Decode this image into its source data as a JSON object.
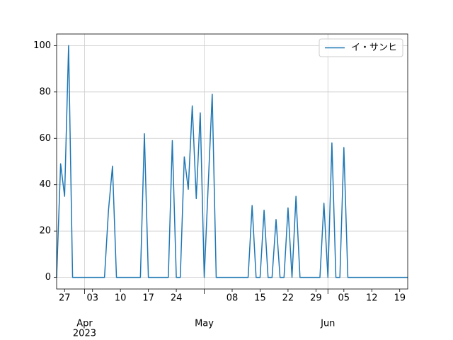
{
  "chart_data": {
    "type": "line",
    "x": [
      "2023-03-25",
      "2023-03-26",
      "2023-03-27",
      "2023-03-28",
      "2023-03-29",
      "2023-03-30",
      "2023-03-31",
      "2023-04-01",
      "2023-04-02",
      "2023-04-03",
      "2023-04-04",
      "2023-04-05",
      "2023-04-06",
      "2023-04-07",
      "2023-04-08",
      "2023-04-09",
      "2023-04-10",
      "2023-04-11",
      "2023-04-12",
      "2023-04-13",
      "2023-04-14",
      "2023-04-15",
      "2023-04-16",
      "2023-04-17",
      "2023-04-18",
      "2023-04-19",
      "2023-04-20",
      "2023-04-21",
      "2023-04-22",
      "2023-04-23",
      "2023-04-24",
      "2023-04-25",
      "2023-04-26",
      "2023-04-27",
      "2023-04-28",
      "2023-04-29",
      "2023-04-30",
      "2023-05-01",
      "2023-05-02",
      "2023-05-03",
      "2023-05-04",
      "2023-05-05",
      "2023-05-06",
      "2023-05-07",
      "2023-05-08",
      "2023-05-09",
      "2023-05-10",
      "2023-05-11",
      "2023-05-12",
      "2023-05-13",
      "2023-05-14",
      "2023-05-15",
      "2023-05-16",
      "2023-05-17",
      "2023-05-18",
      "2023-05-19",
      "2023-05-20",
      "2023-05-21",
      "2023-05-22",
      "2023-05-23",
      "2023-05-24",
      "2023-05-25",
      "2023-05-26",
      "2023-05-27",
      "2023-05-28",
      "2023-05-29",
      "2023-05-30",
      "2023-05-31",
      "2023-06-01",
      "2023-06-02",
      "2023-06-03",
      "2023-06-04",
      "2023-06-05",
      "2023-06-06",
      "2023-06-07",
      "2023-06-08",
      "2023-06-09",
      "2023-06-10",
      "2023-06-11",
      "2023-06-12",
      "2023-06-13",
      "2023-06-14",
      "2023-06-15",
      "2023-06-16",
      "2023-06-17",
      "2023-06-18",
      "2023-06-19",
      "2023-06-20",
      "2023-06-21"
    ],
    "series": [
      {
        "name": "イ・サンヒ",
        "color": "#1f77b4",
        "values": [
          0,
          49,
          35,
          100,
          0,
          0,
          0,
          0,
          0,
          0,
          0,
          0,
          0,
          29,
          48,
          0,
          0,
          0,
          0,
          0,
          0,
          0,
          62,
          0,
          0,
          0,
          0,
          0,
          0,
          59,
          0,
          0,
          52,
          38,
          74,
          34,
          71,
          0,
          40,
          79,
          0,
          0,
          0,
          0,
          0,
          0,
          0,
          0,
          0,
          31,
          0,
          0,
          29,
          0,
          0,
          25,
          0,
          0,
          30,
          0,
          35,
          0,
          0,
          0,
          0,
          0,
          0,
          32,
          0,
          58,
          0,
          0,
          56,
          0,
          0,
          0,
          0,
          0,
          0,
          0,
          0,
          0,
          0,
          0,
          0,
          0,
          0,
          0,
          0
        ]
      }
    ],
    "xlim": [
      "2023-03-25",
      "2023-06-21"
    ],
    "xticks": [
      {
        "value": "2023-03-27",
        "label": "27"
      },
      {
        "value": "2023-04-03",
        "label": "03"
      },
      {
        "value": "2023-04-10",
        "label": "10"
      },
      {
        "value": "2023-04-17",
        "label": "17"
      },
      {
        "value": "2023-04-24",
        "label": "24"
      },
      {
        "value": "2023-05-08",
        "label": "08"
      },
      {
        "value": "2023-05-15",
        "label": "15"
      },
      {
        "value": "2023-05-22",
        "label": "22"
      },
      {
        "value": "2023-05-29",
        "label": "29"
      },
      {
        "value": "2023-06-05",
        "label": "05"
      },
      {
        "value": "2023-06-12",
        "label": "12"
      },
      {
        "value": "2023-06-19",
        "label": "19"
      }
    ],
    "xticks_major": [
      {
        "value": "2023-04-01",
        "label": "Apr"
      },
      {
        "value": "2023-05-01",
        "label": "May"
      },
      {
        "value": "2023-06-01",
        "label": "Jun"
      }
    ],
    "x_year_label": "2023",
    "ylim": [
      -5,
      105
    ],
    "yticks": [
      0,
      20,
      40,
      60,
      80,
      100
    ],
    "grid": true,
    "legend": "upper right"
  }
}
